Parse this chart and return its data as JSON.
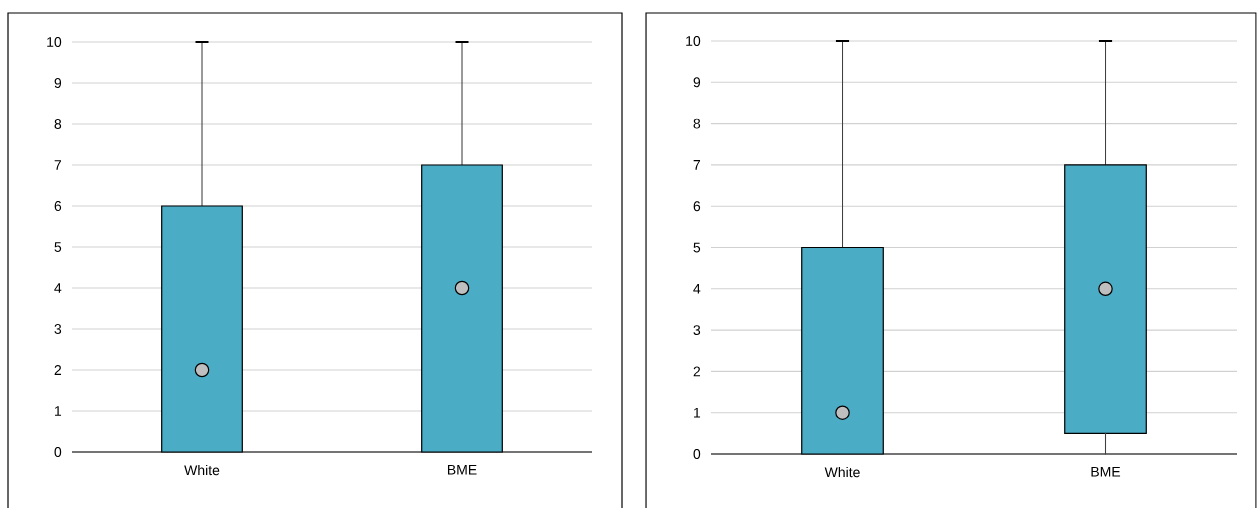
{
  "chart_data": [
    {
      "type": "box",
      "categories": [
        "White",
        "BME"
      ],
      "ylim": [
        0,
        10
      ],
      "yticks": [
        0,
        1,
        2,
        3,
        4,
        5,
        6,
        7,
        8,
        9,
        10
      ],
      "grid": "y",
      "series": [
        {
          "color": "#4bacc6",
          "boxes": [
            {
              "low": 0,
              "q1": 0,
              "median": 2,
              "q3": 6,
              "high": 10
            },
            {
              "low": 0,
              "q1": 0,
              "median": 4,
              "q3": 7,
              "high": 10
            }
          ]
        }
      ]
    },
    {
      "type": "box",
      "categories": [
        "White",
        "BME"
      ],
      "ylim": [
        0,
        10
      ],
      "yticks": [
        0,
        1,
        2,
        3,
        4,
        5,
        6,
        7,
        8,
        9,
        10
      ],
      "grid": "y",
      "series": [
        {
          "color": "#4bacc6",
          "boxes": [
            {
              "low": 0,
              "q1": 0,
              "median": 1,
              "q3": 5,
              "high": 10
            },
            {
              "low": 0,
              "q1": 0.5,
              "median": 4,
              "q3": 7,
              "high": 10
            }
          ]
        }
      ]
    }
  ]
}
